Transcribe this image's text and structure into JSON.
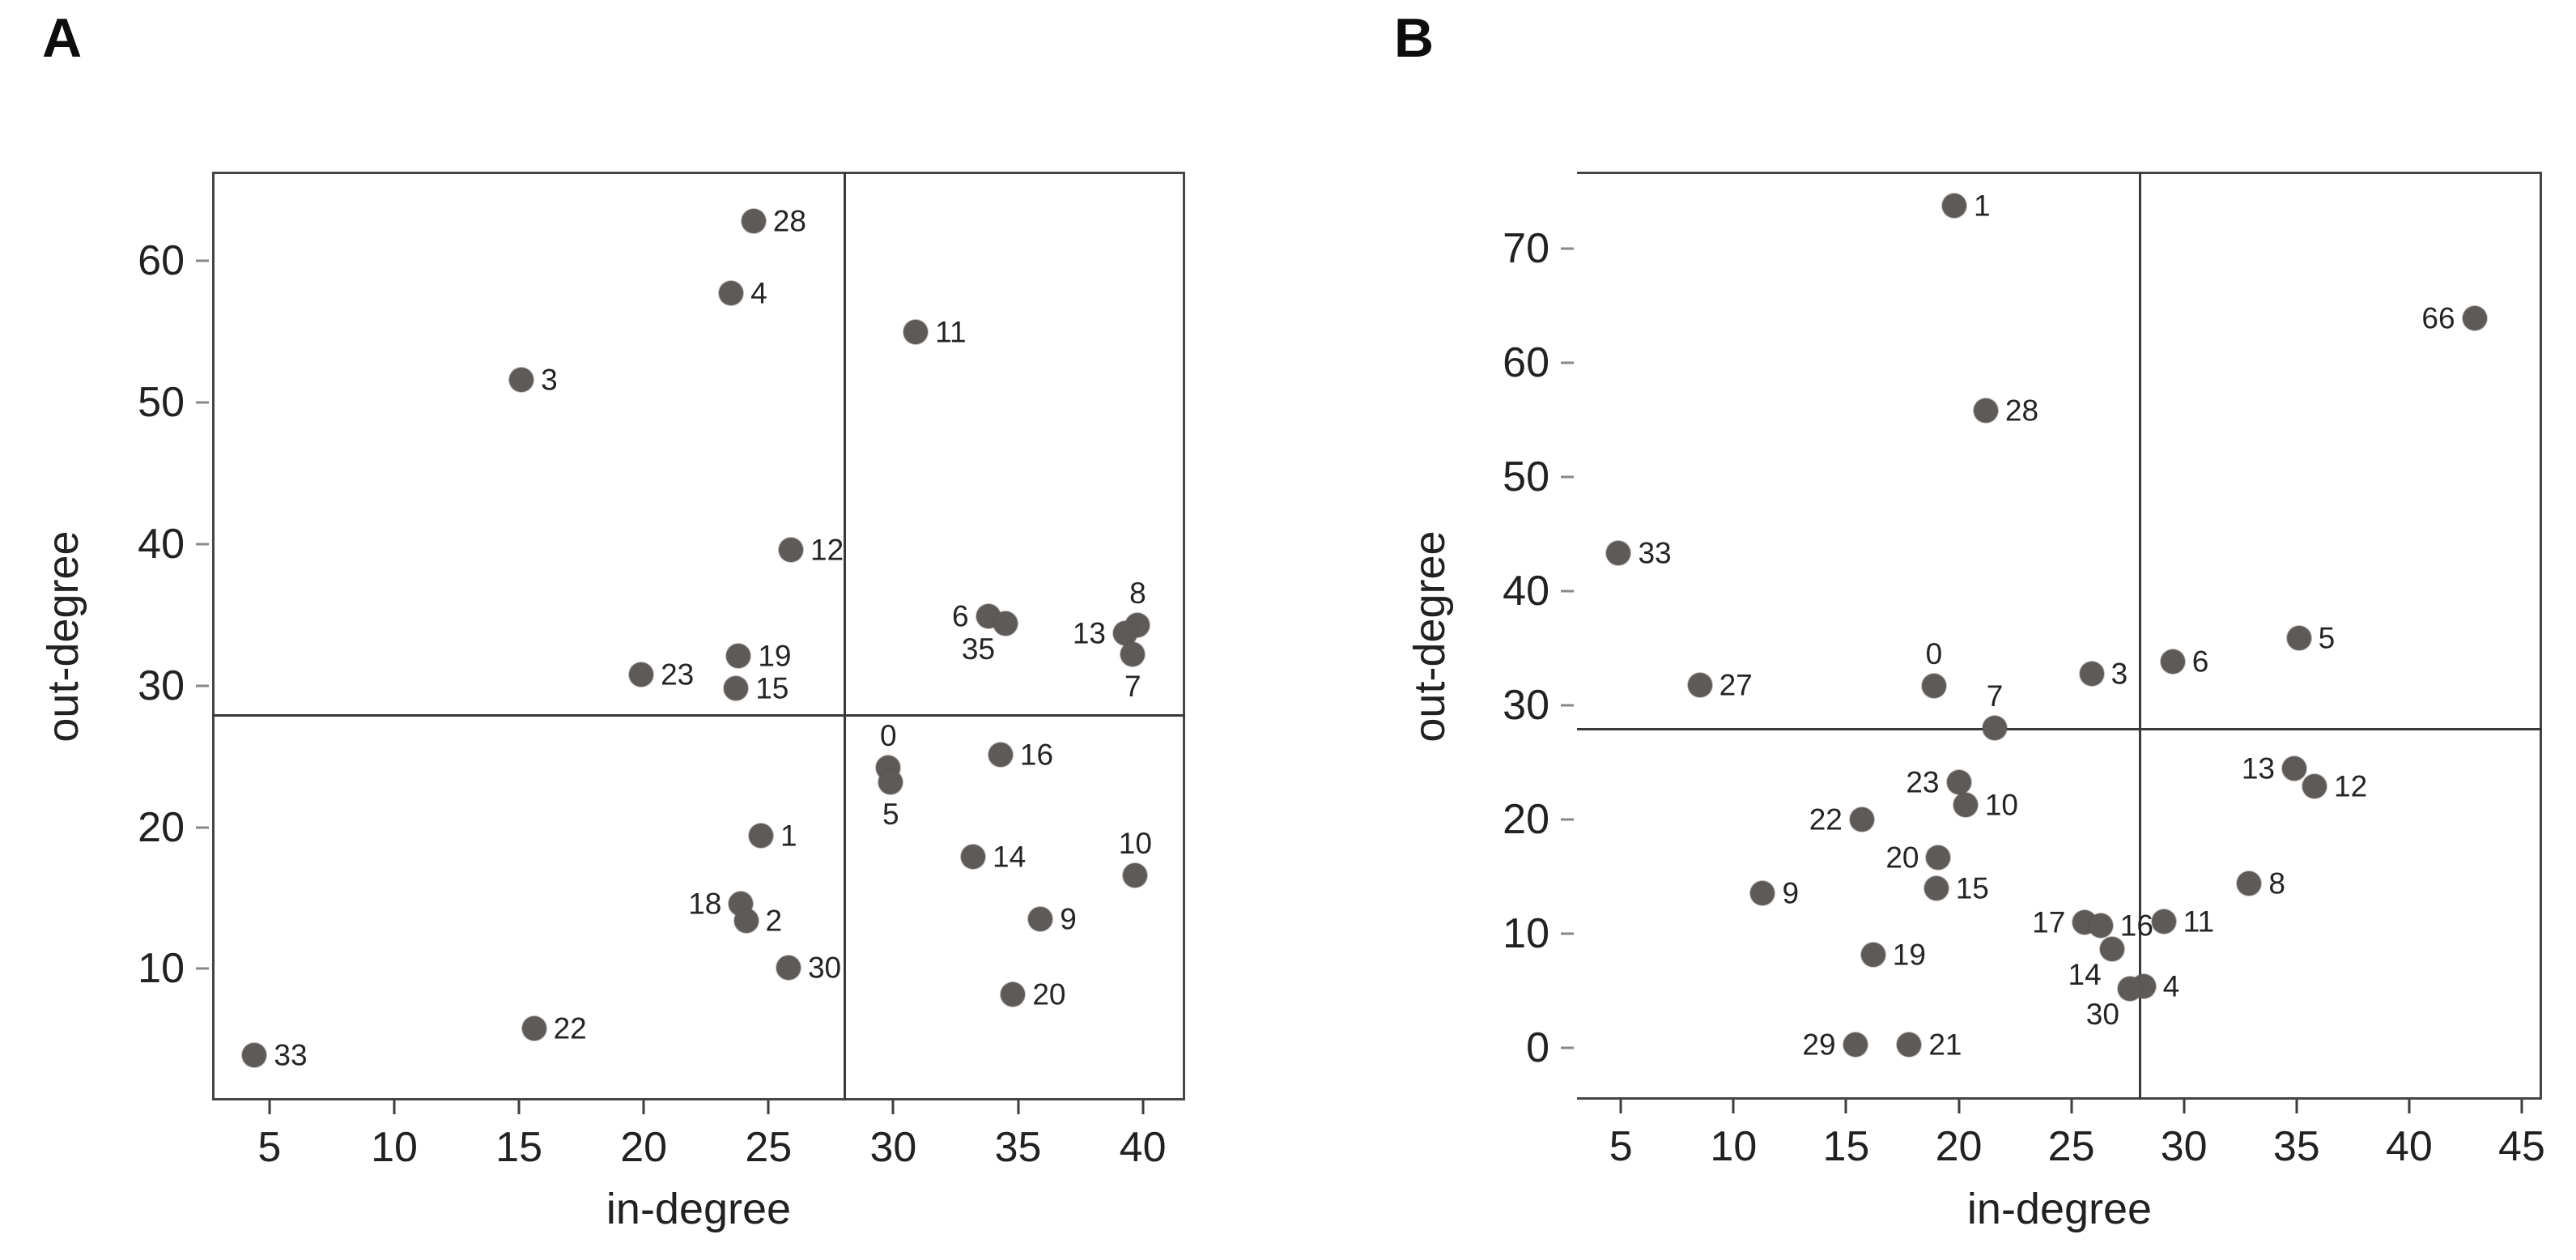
{
  "style": {
    "dot_color": "#5e5a58",
    "point_label_color": "#262423",
    "axis_line_color": "#474443",
    "quadrant_line_color": "#3b3938",
    "text_color": "#222120",
    "background": "#ffffff"
  },
  "chart_data": [
    {
      "panel": "A",
      "type": "scatter",
      "xlabel": "in-degree",
      "ylabel": "out-degree",
      "xlim": [
        2.7,
        41.7
      ],
      "ylim": [
        0.7,
        66.3
      ],
      "xticks": [
        5,
        10,
        15,
        20,
        25,
        30,
        35,
        40
      ],
      "yticks": [
        10,
        20,
        30,
        40,
        50,
        60
      ],
      "grid": false,
      "legend": "none",
      "quadrant_lines": {
        "x": 28,
        "y": 28
      },
      "spines": {
        "left": true,
        "right": true,
        "top": true,
        "bottom": true
      },
      "points": [
        {
          "id": "28",
          "x": 24.4,
          "y": 62.8,
          "label_pos": "r"
        },
        {
          "id": "4",
          "x": 23.5,
          "y": 57.7,
          "label_pos": "r"
        },
        {
          "id": "11",
          "x": 30.9,
          "y": 55.0,
          "label_pos": "r"
        },
        {
          "id": "3",
          "x": 15.1,
          "y": 51.6,
          "label_pos": "r"
        },
        {
          "id": "12",
          "x": 25.9,
          "y": 39.6,
          "label_pos": "r"
        },
        {
          "id": "6",
          "x": 33.8,
          "y": 34.9,
          "label_pos": "l"
        },
        {
          "id": "35",
          "x": 34.5,
          "y": 34.4,
          "label_pos": "bl"
        },
        {
          "id": "8",
          "x": 39.8,
          "y": 34.3,
          "label_pos": "t"
        },
        {
          "id": "13",
          "x": 39.3,
          "y": 33.7,
          "label_pos": "l"
        },
        {
          "id": "7",
          "x": 39.6,
          "y": 32.2,
          "label_pos": "b"
        },
        {
          "id": "19",
          "x": 23.8,
          "y": 32.1,
          "label_pos": "r"
        },
        {
          "id": "23",
          "x": 19.9,
          "y": 30.8,
          "label_pos": "r"
        },
        {
          "id": "15",
          "x": 23.7,
          "y": 29.8,
          "label_pos": "r"
        },
        {
          "id": "0",
          "x": 29.8,
          "y": 24.2,
          "label_pos": "t"
        },
        {
          "id": "16",
          "x": 34.3,
          "y": 25.1,
          "label_pos": "r"
        },
        {
          "id": "5",
          "x": 29.9,
          "y": 23.2,
          "label_pos": "b"
        },
        {
          "id": "1",
          "x": 24.7,
          "y": 19.4,
          "label_pos": "r"
        },
        {
          "id": "14",
          "x": 33.2,
          "y": 17.9,
          "label_pos": "r"
        },
        {
          "id": "10",
          "x": 39.7,
          "y": 16.6,
          "label_pos": "t"
        },
        {
          "id": "18",
          "x": 23.9,
          "y": 14.6,
          "label_pos": "l"
        },
        {
          "id": "2",
          "x": 24.1,
          "y": 13.4,
          "label_pos": "r"
        },
        {
          "id": "9",
          "x": 35.9,
          "y": 13.5,
          "label_pos": "r"
        },
        {
          "id": "30",
          "x": 25.8,
          "y": 10.1,
          "label_pos": "r"
        },
        {
          "id": "20",
          "x": 34.8,
          "y": 8.2,
          "label_pos": "r"
        },
        {
          "id": "22",
          "x": 15.6,
          "y": 5.8,
          "label_pos": "r"
        },
        {
          "id": "33",
          "x": 4.4,
          "y": 3.9,
          "label_pos": "r"
        }
      ]
    },
    {
      "panel": "B",
      "type": "scatter",
      "xlabel": "in-degree",
      "ylabel": "out-degree",
      "xlim": [
        3.05,
        45.9
      ],
      "ylim": [
        -4.5,
        76.7
      ],
      "xticks": [
        5,
        10,
        15,
        20,
        25,
        30,
        35,
        40,
        45
      ],
      "yticks": [
        0,
        10,
        20,
        30,
        40,
        50,
        60,
        70
      ],
      "grid": false,
      "legend": "none",
      "quadrant_lines": {
        "x": 28,
        "y": 28
      },
      "spines": {
        "left": false,
        "right": true,
        "top": true,
        "bottom": true
      },
      "points": [
        {
          "id": "1",
          "x": 19.8,
          "y": 73.7,
          "label_pos": "r"
        },
        {
          "id": "66",
          "x": 42.9,
          "y": 63.9,
          "label_pos": "l"
        },
        {
          "id": "28",
          "x": 21.2,
          "y": 55.8,
          "label_pos": "r"
        },
        {
          "id": "33",
          "x": 4.9,
          "y": 43.3,
          "label_pos": "r"
        },
        {
          "id": "27",
          "x": 8.5,
          "y": 31.8,
          "label_pos": "r"
        },
        {
          "id": "0",
          "x": 18.9,
          "y": 31.7,
          "label_pos": "t"
        },
        {
          "id": "7",
          "x": 21.6,
          "y": 28.0,
          "label_pos": "t"
        },
        {
          "id": "3",
          "x": 25.9,
          "y": 32.8,
          "label_pos": "r"
        },
        {
          "id": "6",
          "x": 29.5,
          "y": 33.8,
          "label_pos": "r"
        },
        {
          "id": "5",
          "x": 35.1,
          "y": 35.9,
          "label_pos": "r"
        },
        {
          "id": "13",
          "x": 34.9,
          "y": 24.5,
          "label_pos": "l"
        },
        {
          "id": "12",
          "x": 35.8,
          "y": 22.9,
          "label_pos": "r"
        },
        {
          "id": "23",
          "x": 20.0,
          "y": 23.3,
          "label_pos": "l"
        },
        {
          "id": "10",
          "x": 20.3,
          "y": 21.3,
          "label_pos": "r"
        },
        {
          "id": "22",
          "x": 15.7,
          "y": 20.0,
          "label_pos": "l"
        },
        {
          "id": "20",
          "x": 19.1,
          "y": 16.7,
          "label_pos": "l"
        },
        {
          "id": "15",
          "x": 19.0,
          "y": 14.0,
          "label_pos": "r"
        },
        {
          "id": "9",
          "x": 11.3,
          "y": 13.6,
          "label_pos": "r"
        },
        {
          "id": "17",
          "x": 25.6,
          "y": 11.0,
          "label_pos": "l"
        },
        {
          "id": "16",
          "x": 26.3,
          "y": 10.7,
          "label_pos": "r"
        },
        {
          "id": "14",
          "x": 26.8,
          "y": 8.7,
          "label_pos": "bl"
        },
        {
          "id": "11",
          "x": 29.1,
          "y": 11.1,
          "label_pos": "r"
        },
        {
          "id": "8",
          "x": 32.9,
          "y": 14.4,
          "label_pos": "r"
        },
        {
          "id": "19",
          "x": 16.2,
          "y": 8.2,
          "label_pos": "r"
        },
        {
          "id": "4",
          "x": 28.2,
          "y": 5.4,
          "label_pos": "r"
        },
        {
          "id": "30",
          "x": 27.6,
          "y": 5.2,
          "label_pos": "bl"
        },
        {
          "id": "29",
          "x": 15.4,
          "y": 0.3,
          "label_pos": "l"
        },
        {
          "id": "21",
          "x": 17.8,
          "y": 0.3,
          "label_pos": "r"
        }
      ]
    }
  ]
}
